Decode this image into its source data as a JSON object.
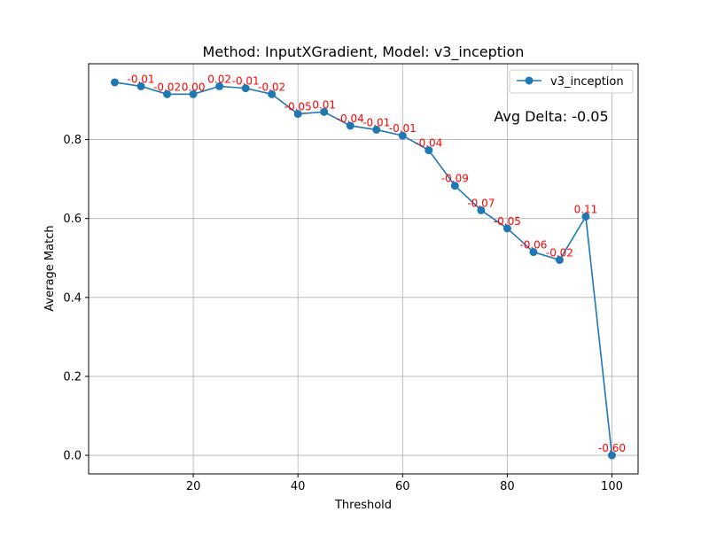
{
  "chart_data": {
    "type": "line",
    "title": "Method: InputXGradient, Model: v3_inception",
    "xlabel": "Threshold",
    "ylabel": "Average Match",
    "xlim": [
      0,
      105
    ],
    "ylim": [
      -0.047,
      0.992
    ],
    "grid": true,
    "legend_position": "top-right",
    "x_ticks": [
      20,
      40,
      60,
      80,
      100
    ],
    "x_tick_labels": [
      "20",
      "40",
      "60",
      "80",
      "100"
    ],
    "y_ticks": [
      0.0,
      0.2,
      0.4,
      0.6,
      0.8
    ],
    "y_tick_labels": [
      "0.0",
      "0.2",
      "0.4",
      "0.6",
      "0.8"
    ],
    "x": [
      5,
      10,
      15,
      20,
      25,
      30,
      35,
      40,
      45,
      50,
      55,
      60,
      65,
      70,
      75,
      80,
      85,
      90,
      95,
      100
    ],
    "series": [
      {
        "name": "v3_inception",
        "color": "#1f77b4",
        "marker": "circle",
        "values": [
          0.945,
          0.935,
          0.915,
          0.915,
          0.935,
          0.93,
          0.915,
          0.865,
          0.87,
          0.835,
          0.825,
          0.81,
          0.773,
          0.683,
          0.621,
          0.575,
          0.515,
          0.495,
          0.605,
          0.0
        ]
      }
    ],
    "point_annotations": {
      "color": "#ff0000",
      "labels": [
        "",
        "-0.01",
        "-0.02",
        "0.00",
        "0.02",
        "-0.01",
        "-0.02",
        "-0.05",
        "0.01",
        "-0.04",
        "-0.01",
        "-0.01",
        "-0.04",
        "-0.09",
        "-0.07",
        "-0.05",
        "-0.06",
        "-0.02",
        "0.11",
        "-0.60"
      ]
    },
    "text_annotation": "Avg Delta: -0.05"
  },
  "colors": {
    "grid": "#b0b0b0",
    "axis": "#000000",
    "background": "#ffffff"
  }
}
